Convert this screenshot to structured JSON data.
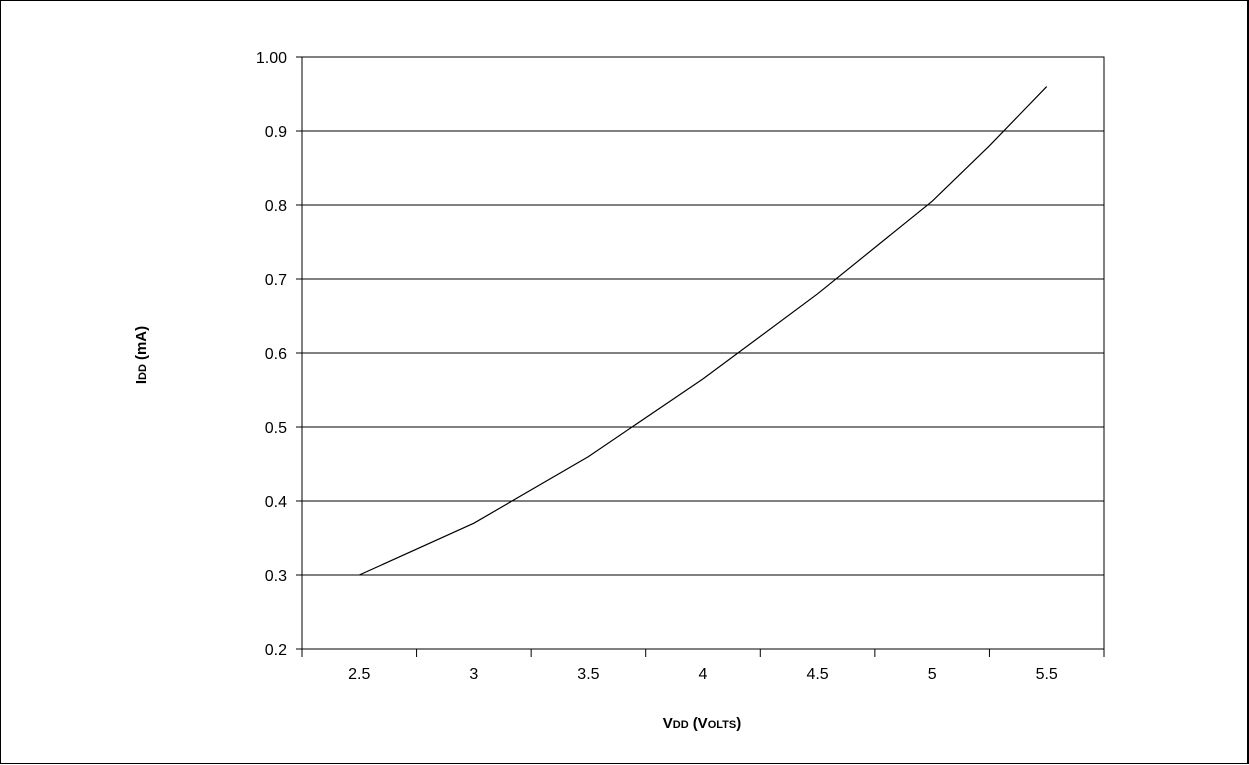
{
  "chart_data": {
    "type": "line",
    "title": "",
    "xlabel": {
      "main": "V",
      "sub": "DD",
      "unit": "(V",
      "unit_smallcaps": "OLTS",
      "close": ")"
    },
    "ylabel": {
      "main": "I",
      "sub": "DD",
      "unit": "(mA)"
    },
    "xlim": [
      2.25,
      5.75
    ],
    "ylim": [
      0.2,
      1.0
    ],
    "x_ticks": [
      2.5,
      3,
      3.5,
      4,
      4.5,
      5,
      5.5
    ],
    "x_tick_labels": [
      "2.5",
      "3",
      "3.5",
      "4",
      "4.5",
      "5",
      "5.5"
    ],
    "y_ticks": [
      0.2,
      0.3,
      0.4,
      0.5,
      0.6,
      0.7,
      0.8,
      0.9,
      1.0
    ],
    "y_tick_labels": [
      "0.2",
      "0.3",
      "0.4",
      "0.5",
      "0.6",
      "0.7",
      "0.8",
      "0.9",
      "1.00"
    ],
    "grid": "horizontal",
    "series": [
      {
        "color": "#000000",
        "x": [
          2.5,
          3.0,
          3.5,
          4.0,
          4.5,
          5.0,
          5.25,
          5.5
        ],
        "y": [
          0.3,
          0.37,
          0.46,
          0.565,
          0.68,
          0.805,
          0.88,
          0.96
        ]
      }
    ]
  }
}
